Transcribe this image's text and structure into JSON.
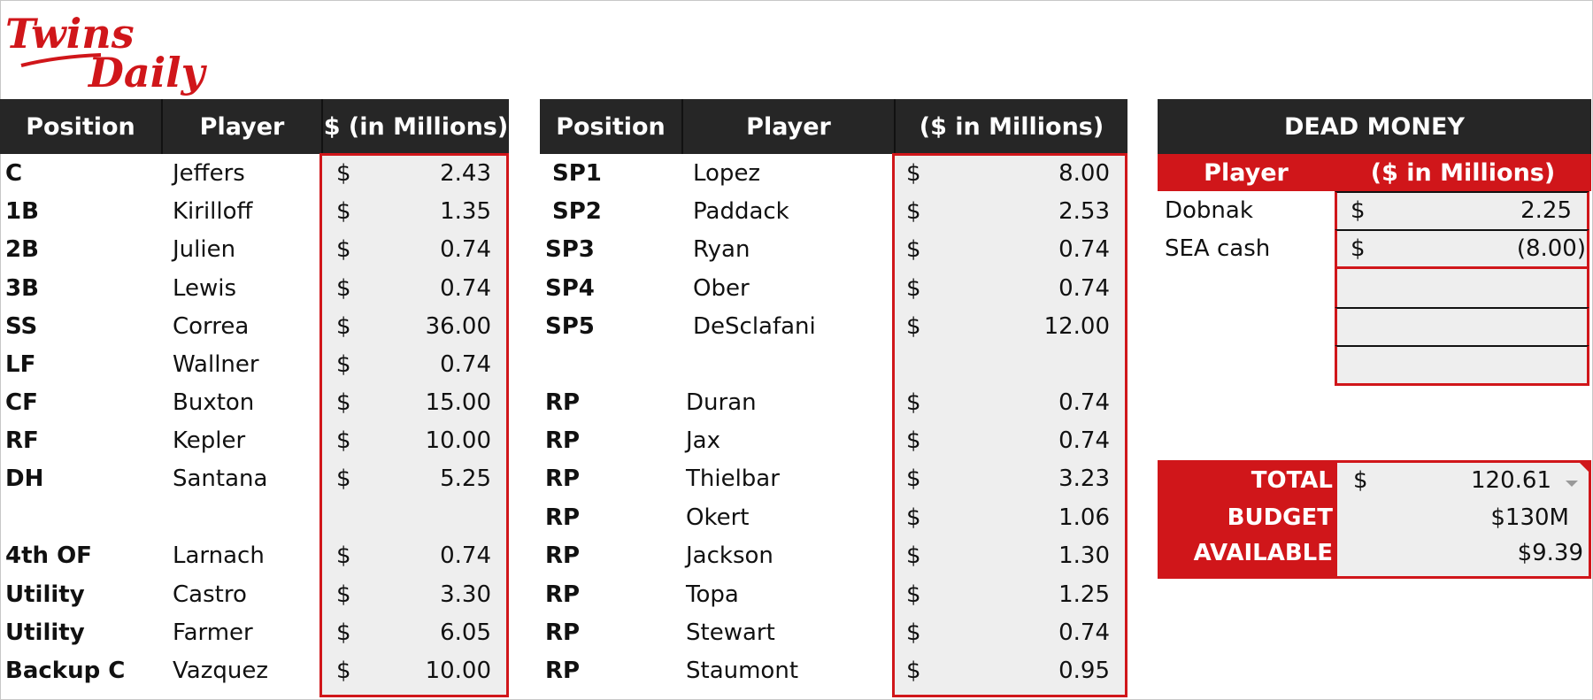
{
  "logo": {
    "line1": "Twins",
    "line2": "Daily",
    "color": "#d0161a"
  },
  "colors": {
    "header_bg": "#262626",
    "accent_red": "#d0161a",
    "value_bg": "#eeeeee"
  },
  "hitters": {
    "headers": {
      "position": "Position",
      "player": "Player",
      "salary": "$ (in Millions)"
    },
    "currency_symbol": "$",
    "rows": [
      {
        "position": "C",
        "player": "Jeffers",
        "salary": "2.43"
      },
      {
        "position": "1B",
        "player": "Kirilloff",
        "salary": "1.35"
      },
      {
        "position": "2B",
        "player": "Julien",
        "salary": "0.74"
      },
      {
        "position": "3B",
        "player": "Lewis",
        "salary": "0.74"
      },
      {
        "position": "SS",
        "player": "Correa",
        "salary": "36.00"
      },
      {
        "position": "LF",
        "player": "Wallner",
        "salary": "0.74"
      },
      {
        "position": "CF",
        "player": "Buxton",
        "salary": "15.00"
      },
      {
        "position": "RF",
        "player": "Kepler",
        "salary": "10.00"
      },
      {
        "position": "DH",
        "player": "Santana",
        "salary": "5.25"
      },
      {
        "position": "4th OF",
        "player": "Larnach",
        "salary": "0.74"
      },
      {
        "position": "Utility",
        "player": "Castro",
        "salary": "3.30"
      },
      {
        "position": "Utility",
        "player": "Farmer",
        "salary": "6.05"
      },
      {
        "position": "Backup C",
        "player": "Vazquez",
        "salary": "10.00"
      }
    ]
  },
  "pitchers": {
    "headers": {
      "position": "Position",
      "player": "Player",
      "salary": "($ in Millions)"
    },
    "currency_symbol": "$",
    "rows": [
      {
        "position": "SP1",
        "player": "Lopez",
        "salary": "8.00"
      },
      {
        "position": "SP2",
        "player": "Paddack",
        "salary": "2.53"
      },
      {
        "position": "SP3",
        "player": "Ryan",
        "salary": "0.74"
      },
      {
        "position": "SP4",
        "player": "Ober",
        "salary": "0.74"
      },
      {
        "position": "SP5",
        "player": "DeSclafani",
        "salary": "12.00"
      },
      {
        "position": "RP",
        "player": "Duran",
        "salary": "0.74"
      },
      {
        "position": "RP",
        "player": "Jax",
        "salary": "0.74"
      },
      {
        "position": "RP",
        "player": "Thielbar",
        "salary": "3.23"
      },
      {
        "position": "RP",
        "player": "Okert",
        "salary": "1.06"
      },
      {
        "position": "RP",
        "player": "Jackson",
        "salary": "1.30"
      },
      {
        "position": "RP",
        "player": "Topa",
        "salary": "1.25"
      },
      {
        "position": "RP",
        "player": "Stewart",
        "salary": "0.74"
      },
      {
        "position": "RP",
        "player": "Staumont",
        "salary": "0.95"
      }
    ]
  },
  "dead_money": {
    "title": "DEAD MONEY",
    "headers": {
      "player": "Player",
      "salary": "($ in Millions)"
    },
    "currency_symbol": "$",
    "rows": [
      {
        "player": "Dobnak",
        "salary": "2.25"
      },
      {
        "player": "SEA cash",
        "salary": "(8.00)"
      }
    ]
  },
  "summary": {
    "total_label": "TOTAL",
    "total_currency": "$",
    "total_value": "120.61",
    "budget_label": "BUDGET",
    "budget_value": "$130M",
    "available_label": "AVAILABLE",
    "available_value": "$9.39"
  }
}
